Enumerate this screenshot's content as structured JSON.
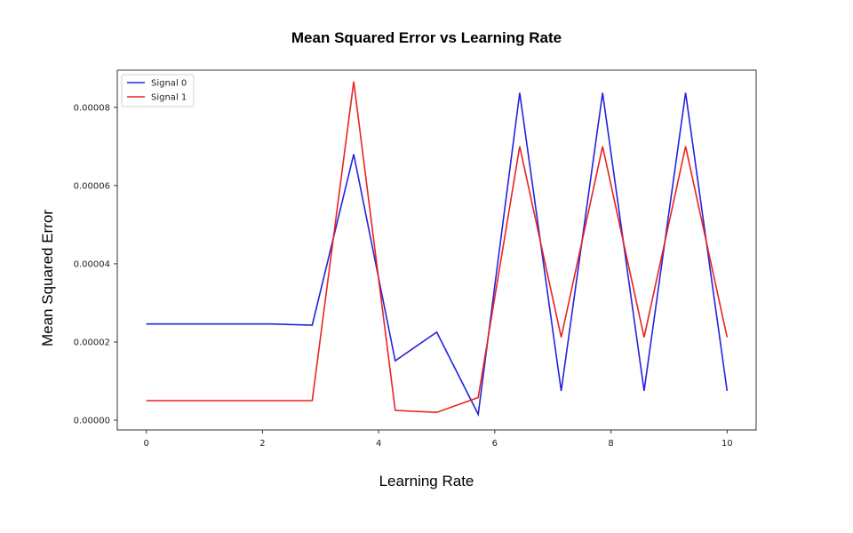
{
  "chart_data": {
    "type": "line",
    "title": "Mean Squared Error vs Learning Rate",
    "xlabel": "Learning Rate",
    "ylabel": "Mean Squared Error",
    "xlim": [
      -0.5,
      10.5
    ],
    "ylim": [
      -2.5e-06,
      8.95e-05
    ],
    "xticks": [
      0,
      2,
      4,
      6,
      8,
      10
    ],
    "xtick_labels": [
      "0",
      "2",
      "4",
      "6",
      "8",
      "10"
    ],
    "yticks": [
      0,
      2e-05,
      4e-05,
      6e-05,
      8e-05
    ],
    "ytick_labels": [
      "0.00000",
      "0.00002",
      "0.00004",
      "0.00006",
      "0.00008"
    ],
    "grid": false,
    "legend_position": "top-left",
    "x": [
      0,
      0.714,
      1.429,
      2.143,
      2.857,
      3.571,
      4.286,
      5.0,
      5.714,
      6.429,
      7.143,
      7.857,
      8.571,
      9.286,
      10.0
    ],
    "series": [
      {
        "name": "Signal 0",
        "color": "#2323dd",
        "values": [
          2.46e-05,
          2.46e-05,
          2.46e-05,
          2.46e-05,
          2.43e-05,
          6.8e-05,
          1.52e-05,
          2.25e-05,
          1.5e-06,
          8.37e-05,
          7.5e-06,
          8.37e-05,
          7.5e-06,
          8.37e-05,
          7.5e-06
        ]
      },
      {
        "name": "Signal 1",
        "color": "#e8231f",
        "values": [
          5e-06,
          5e-06,
          5e-06,
          5e-06,
          5e-06,
          8.66e-05,
          2.5e-06,
          2e-06,
          5.8e-06,
          7e-05,
          2.12e-05,
          7e-05,
          2.12e-05,
          7e-05,
          2.12e-05
        ]
      }
    ]
  }
}
